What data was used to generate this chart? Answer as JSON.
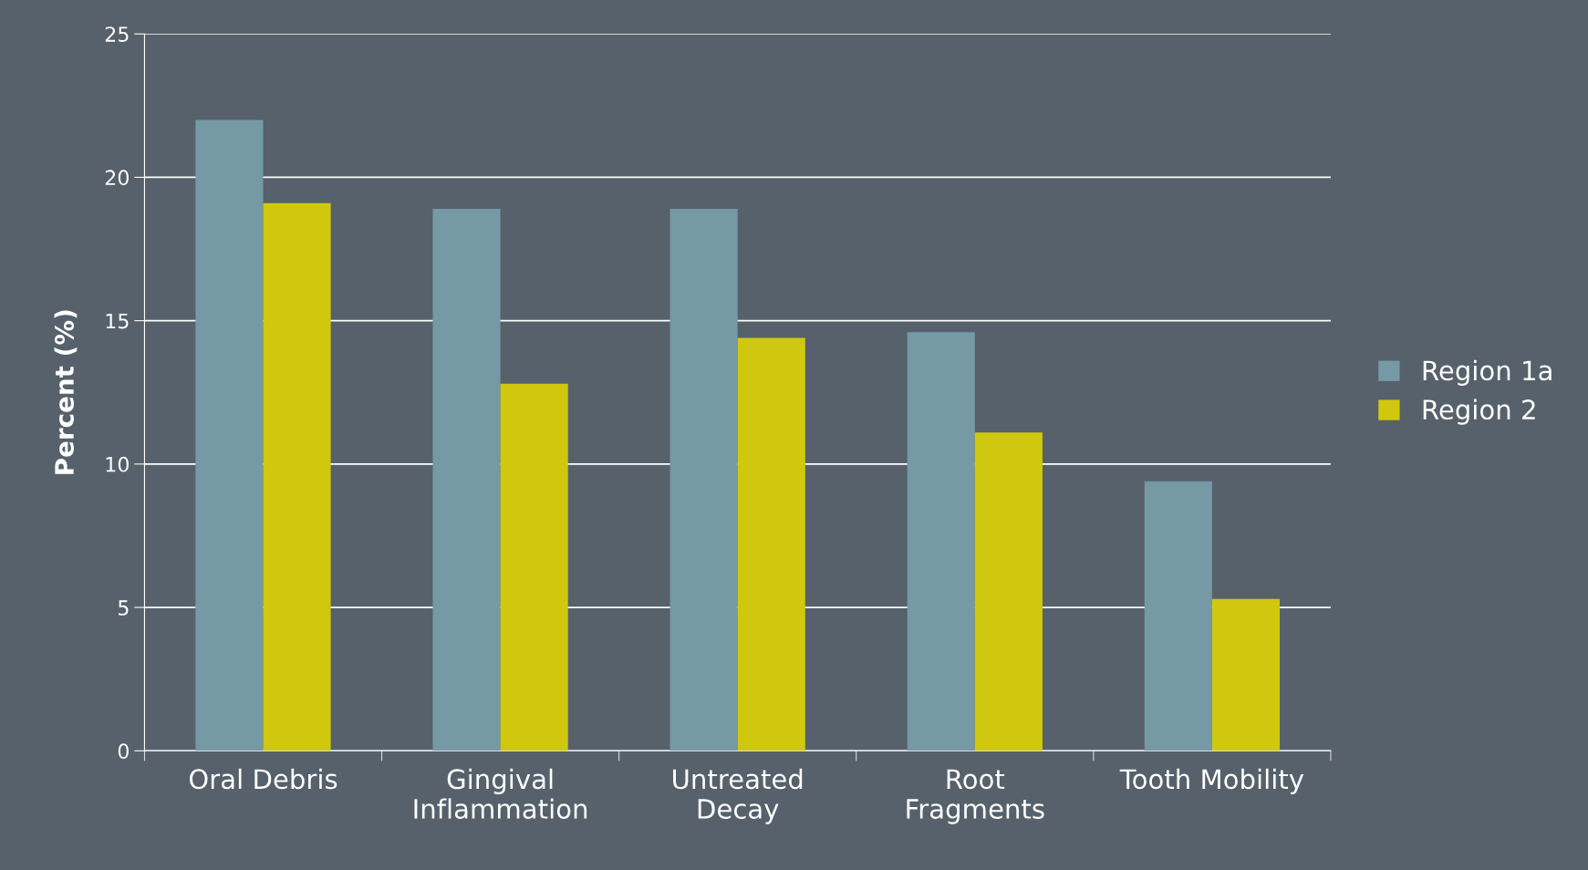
{
  "chart_data": {
    "type": "bar",
    "ylabel": "Percent (%)",
    "categories": [
      "Oral Debris",
      "Gingival\nInflammation",
      "Untreated\nDecay",
      "Root\nFragments",
      "Tooth Mobility"
    ],
    "series": [
      {
        "name": "Region 1a",
        "color": "#7599a5",
        "values": [
          22,
          18.9,
          18.9,
          14.6,
          9.4
        ]
      },
      {
        "name": "Region 2",
        "color": "#d0c80e",
        "values": [
          19.1,
          12.8,
          14.4,
          11.1,
          5.3
        ]
      }
    ],
    "ylim": [
      0,
      25
    ],
    "yticks": [
      0,
      5,
      10,
      15,
      20,
      25
    ],
    "grid": "y",
    "legend": "right"
  }
}
